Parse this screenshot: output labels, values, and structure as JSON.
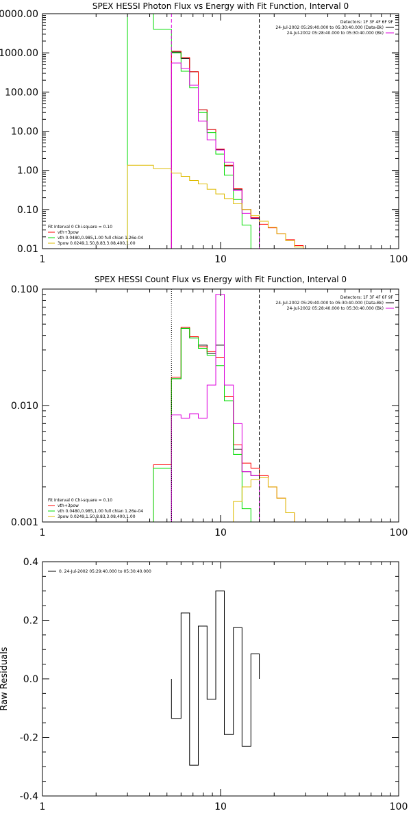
{
  "colors": {
    "total": "#ff0000",
    "vth": "#00dd00",
    "bpow": "#ddbb00",
    "bk": "#dd00dd",
    "data": "#000000",
    "axes": "#000000"
  },
  "chart_data": [
    {
      "type": "line",
      "title": "SPEX HESSI Photon Flux vs Energy with Fit Function, Interval 0",
      "xscale": "log",
      "yscale": "log",
      "xlim": [
        1,
        100
      ],
      "ylim": [
        0.01,
        10000
      ],
      "xticks": [
        "1",
        "10",
        "100"
      ],
      "yticks": [
        "0000.00",
        "1000.00",
        "100.00",
        "10.00",
        "1.00",
        "0.10",
        "0.01"
      ],
      "xlabel": "",
      "ylabel": "",
      "vlines": [
        {
          "x": 5.3,
          "style": "dashed",
          "color": "bk"
        },
        {
          "x": 16.5,
          "style": "dashed",
          "color": "axes"
        }
      ],
      "annotation": {
        "detectors": "Detectors: 1F 3F 4F 6F 9F",
        "time1": "24-Jul-2002 05:29:40.000 to 05:30:40.000 (Data-Bk)",
        "time2": "24-Jul-2002 05:28:40.000 to 05:30:40.000 (Bk)"
      },
      "legend": {
        "header": "Fit Interval 0   Chi-square = 0.10",
        "items": [
          {
            "label": "vth+3pow",
            "color": "total"
          },
          {
            "label": "vth 0.0480,0.985,1.00  full chian 1.26e-04",
            "color": "vth"
          },
          {
            "label": "3pow 0.0249,1.50,8.83,3.08,400,1.00",
            "color": "bpow"
          }
        ]
      },
      "series": [
        {
          "key": "data",
          "color": "data",
          "edges": [
            5.3,
            6.0,
            6.7,
            7.5,
            8.4,
            9.4,
            10.5,
            11.8,
            13.2,
            14.8,
            16.5
          ],
          "values": [
            1050,
            720,
            330,
            35,
            11,
            3.4,
            1.3,
            0.33,
            0.1,
            0.058
          ]
        },
        {
          "key": "total",
          "color": "total",
          "edges": [
            5.3,
            6.0,
            6.7,
            7.5,
            8.4,
            9.4,
            10.5,
            11.8,
            13.2,
            14.8,
            16.5,
            18.5,
            20.7,
            23.2,
            26,
            29.1
          ],
          "values": [
            1100,
            760,
            330,
            35,
            11,
            3.5,
            1.35,
            0.34,
            0.1,
            0.062,
            0.042,
            0.034,
            0.024,
            0.017,
            0.012
          ]
        },
        {
          "key": "vth",
          "color": "vth",
          "edges": [
            3.0,
            4.2,
            5.3,
            6.0,
            6.7,
            7.5,
            8.4,
            9.4,
            10.5,
            11.8,
            13.2,
            14.8,
            16.5
          ],
          "values": [
            10000,
            4000,
            1000,
            340,
            130,
            30,
            9.2,
            2.6,
            0.75,
            0.18,
            0.04,
            0.009
          ]
        },
        {
          "key": "bk",
          "color": "bk",
          "edges": [
            5.3,
            6.0,
            6.7,
            7.5,
            8.4,
            9.4,
            10.5,
            11.8,
            13.2,
            14.8,
            16.5
          ],
          "values": [
            550,
            400,
            150,
            18,
            6,
            3.3,
            1.6,
            0.3,
            0.08,
            0.06
          ]
        },
        {
          "key": "bpow",
          "color": "bpow",
          "edges": [
            3.0,
            4.2,
            5.3,
            6.0,
            6.7,
            7.5,
            8.4,
            9.4,
            10.5,
            11.8,
            13.2,
            14.8,
            16.5,
            18.5,
            20.7,
            23.2,
            26,
            29.1
          ],
          "values": [
            1.35,
            1.1,
            0.85,
            0.7,
            0.55,
            0.45,
            0.33,
            0.25,
            0.19,
            0.14,
            0.1,
            0.07,
            0.05,
            0.035,
            0.024,
            0.016,
            0.011
          ]
        }
      ]
    },
    {
      "type": "line",
      "title": "SPEX HESSI Count Flux vs Energy with Fit Function, Interval 0",
      "xscale": "log",
      "yscale": "log",
      "xlim": [
        1,
        100
      ],
      "ylim": [
        0.001,
        0.1
      ],
      "xticks": [
        "1",
        "10",
        "100"
      ],
      "yticks": [
        "0.100",
        "0.010",
        "0.001"
      ],
      "xlabel": "",
      "ylabel": "",
      "vlines": [
        {
          "x": 5.3,
          "style": "dotted",
          "color": "axes"
        },
        {
          "x": 16.5,
          "style": "dashed",
          "color": "axes"
        }
      ],
      "annotation": {
        "detectors": "Detectors: 1F 3F 4F 6F 9F",
        "time1": "24-Jul-2002 05:29:40.000 to 05:30:40.000 (Data-Bk)",
        "time2": "24-Jul-2002 05:28:40.000 to 05:30:40.000 (Bk)"
      },
      "legend": {
        "header": "Fit Interval 0   Chi-square = 0.10",
        "items": [
          {
            "label": "vth+3pow",
            "color": "total"
          },
          {
            "label": "vth 0.0480,0.985,1.00  full chian 1.26e-04",
            "color": "vth"
          },
          {
            "label": "3pow 0.0249,1.50,8.83,3.08,400,1.00",
            "color": "bpow"
          }
        ]
      },
      "series": [
        {
          "key": "data",
          "color": "data",
          "edges": [
            5.3,
            6.0,
            6.7,
            7.5,
            8.4,
            9.4,
            10.5,
            11.8,
            13.2,
            14.8,
            16.5
          ],
          "values": [
            0.017,
            0.046,
            0.038,
            0.033,
            0.028,
            0.033,
            0.011,
            0.0042,
            0.0027,
            0.0025
          ]
        },
        {
          "key": "total",
          "color": "total",
          "edges": [
            4.2,
            5.3,
            6.0,
            6.7,
            7.5,
            8.4,
            9.4,
            10.5,
            11.8,
            13.2,
            14.8,
            16.5,
            18.5,
            20.7,
            23.2,
            26,
            29.1
          ],
          "values": [
            0.0031,
            0.0175,
            0.047,
            0.039,
            0.032,
            0.029,
            0.026,
            0.012,
            0.0046,
            0.0032,
            0.0029,
            0.0025,
            0.002,
            0.0016,
            0.0012,
            0.001
          ]
        },
        {
          "key": "vth",
          "color": "vth",
          "edges": [
            3.0,
            4.2,
            5.3,
            6.0,
            6.7,
            7.5,
            8.4,
            9.4,
            10.5,
            11.8,
            13.2,
            14.8
          ],
          "values": [
            0.0005,
            0.0029,
            0.017,
            0.046,
            0.038,
            0.031,
            0.027,
            0.022,
            0.011,
            0.0038,
            0.0013
          ]
        },
        {
          "key": "bk",
          "color": "bk",
          "edges": [
            5.3,
            6.0,
            6.7,
            7.5,
            8.4,
            9.4,
            10.5,
            11.8,
            13.2,
            14.8,
            16.5
          ],
          "values": [
            0.0083,
            0.0078,
            0.0085,
            0.0078,
            0.015,
            0.09,
            0.015,
            0.007,
            0.0027,
            0.0025
          ]
        },
        {
          "key": "bpow",
          "color": "bpow",
          "edges": [
            10.5,
            11.8,
            13.2,
            14.8,
            16.5,
            18.5,
            20.7,
            23.2,
            26,
            29.1
          ],
          "values": [
            0.0008,
            0.0015,
            0.002,
            0.0023,
            0.0024,
            0.002,
            0.0016,
            0.0012,
            0.001
          ]
        }
      ]
    },
    {
      "type": "line",
      "title": "",
      "xscale": "log",
      "yscale": "linear",
      "xlim": [
        1,
        100
      ],
      "ylim": [
        -0.4,
        0.4
      ],
      "xticks": [
        "1",
        "10",
        "100"
      ],
      "yticks": [
        "0.4",
        "0.2",
        "0.0",
        "-0.2",
        "-0.4"
      ],
      "xlabel": "",
      "ylabel": "Raw Residuals",
      "legend": {
        "header": "",
        "items": [
          {
            "label": "0. 24-Jul-2002 05:29:40.000 to 05:30:40.000",
            "color": "data"
          }
        ]
      },
      "series": [
        {
          "key": "residuals",
          "color": "data",
          "edges": [
            5.3,
            6.0,
            6.7,
            7.5,
            8.4,
            9.4,
            10.5,
            11.8,
            13.2,
            14.8,
            16.5
          ],
          "values": [
            -0.135,
            0.225,
            -0.295,
            0.18,
            -0.07,
            0.3,
            -0.19,
            0.175,
            -0.23,
            0.085
          ]
        }
      ]
    }
  ]
}
